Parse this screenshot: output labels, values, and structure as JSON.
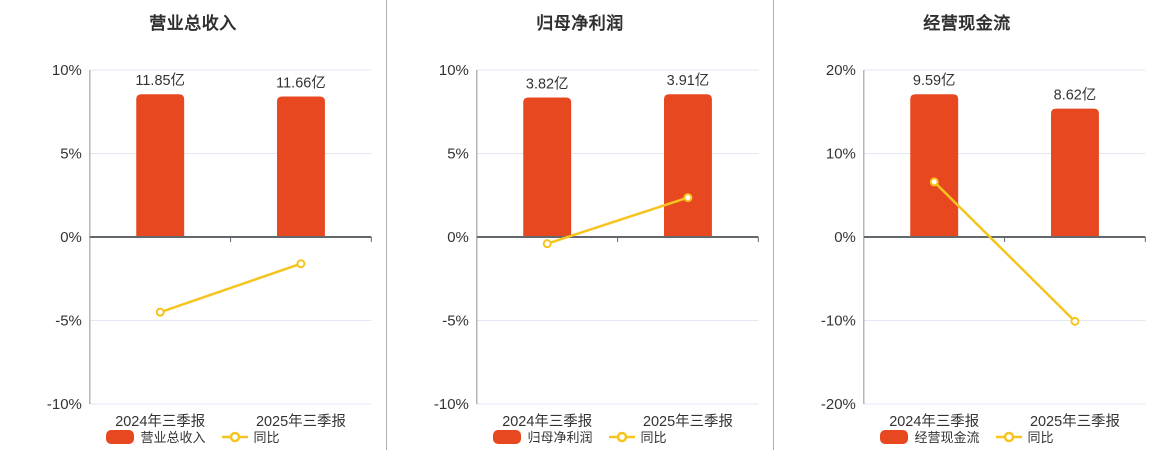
{
  "colors": {
    "bar": "#e8481f",
    "line": "#f5c41e",
    "marker_fill": "#ffffff",
    "grid_line": "#e3e7f1",
    "zero_axis": "#63676e",
    "y_axis_line": "#909090",
    "divider": "#b0b0b0",
    "title_text": "#2f2f2f",
    "label_text": "#333333",
    "background": "#ffffff"
  },
  "chart_data": [
    {
      "type": "bar",
      "title": "营业总收入",
      "categories": [
        "2024年三季报",
        "2025年三季报"
      ],
      "series": [
        {
          "name": "营业总收入",
          "type": "bar",
          "unit": "亿",
          "values": [
            11.85,
            11.66
          ],
          "labels": [
            "11.85亿",
            "11.66亿"
          ]
        },
        {
          "name": "同比",
          "type": "line",
          "unit": "%",
          "values": [
            -4.5,
            -1.6
          ]
        }
      ],
      "y_axis": {
        "min": -10,
        "max": 10,
        "ticks": [
          "10%",
          "5%",
          "0%",
          "-5%",
          "-10%"
        ]
      },
      "legend_position": "bottom",
      "grid": true
    },
    {
      "type": "bar",
      "title": "归母净利润",
      "categories": [
        "2024年三季报",
        "2025年三季报"
      ],
      "series": [
        {
          "name": "归母净利润",
          "type": "bar",
          "unit": "亿",
          "values": [
            3.82,
            3.91
          ],
          "labels": [
            "3.82亿",
            "3.91亿"
          ]
        },
        {
          "name": "同比",
          "type": "line",
          "unit": "%",
          "values": [
            -0.4,
            2.36
          ]
        }
      ],
      "y_axis": {
        "min": -10,
        "max": 10,
        "ticks": [
          "10%",
          "5%",
          "0%",
          "-5%",
          "-10%"
        ]
      },
      "legend_position": "bottom",
      "grid": true
    },
    {
      "type": "bar",
      "title": "经营现金流",
      "categories": [
        "2024年三季报",
        "2025年三季报"
      ],
      "series": [
        {
          "name": "经营现金流",
          "type": "bar",
          "unit": "亿",
          "values": [
            9.59,
            8.62
          ],
          "labels": [
            "9.59亿",
            "8.62亿"
          ]
        },
        {
          "name": "同比",
          "type": "line",
          "unit": "%",
          "values": [
            6.6,
            -10.1
          ]
        }
      ],
      "y_axis": {
        "min": -20,
        "max": 20,
        "ticks": [
          "20%",
          "10%",
          "0%",
          "-10%",
          "-20%"
        ]
      },
      "legend_position": "bottom",
      "grid": true
    }
  ]
}
